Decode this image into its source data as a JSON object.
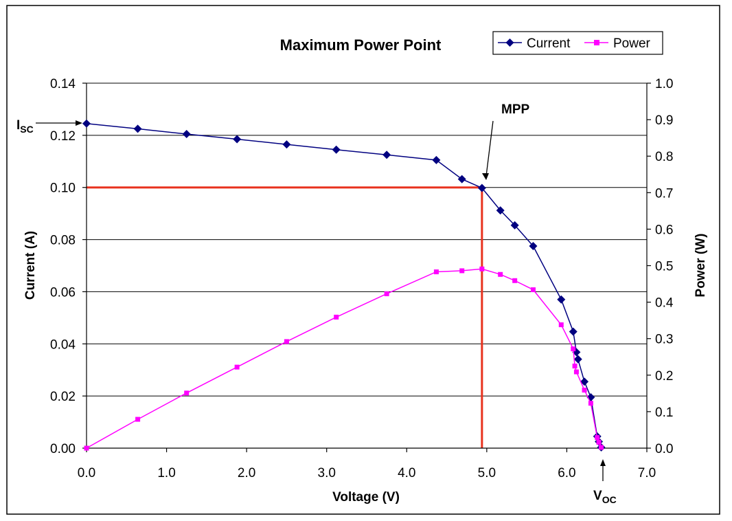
{
  "chart_data": {
    "type": "line",
    "title": "Maximum Power Point",
    "xlabel": "Voltage (V)",
    "ylabel": "Current (A)",
    "y2label": "Power (W)",
    "xlim": [
      0,
      7
    ],
    "ylim": [
      0,
      0.14
    ],
    "y2lim": [
      0,
      1.0
    ],
    "xticks": [
      "0.0",
      "1.0",
      "2.0",
      "3.0",
      "4.0",
      "5.0",
      "6.0",
      "7.0"
    ],
    "yticks": [
      "0.00",
      "0.02",
      "0.04",
      "0.06",
      "0.08",
      "0.10",
      "0.12",
      "0.14"
    ],
    "y2ticks": [
      "0.0",
      "0.1",
      "0.2",
      "0.3",
      "0.4",
      "0.5",
      "0.6",
      "0.7",
      "0.8",
      "0.9",
      "1.0"
    ],
    "grid": "horizontal",
    "legend_position": "top-right",
    "series": [
      {
        "name": "Current",
        "axis": "left",
        "color": "#000080",
        "marker": "diamond",
        "x": [
          0.0,
          0.64,
          1.25,
          1.88,
          2.5,
          3.12,
          3.75,
          4.37,
          4.69,
          4.94,
          5.17,
          5.35,
          5.58,
          5.93,
          6.08,
          6.12,
          6.14,
          6.22,
          6.3,
          6.38,
          6.4,
          6.43
        ],
        "y": [
          0.1245,
          0.1225,
          0.1205,
          0.1185,
          0.1165,
          0.1145,
          0.1125,
          0.1105,
          0.1032,
          0.0998,
          0.0912,
          0.0855,
          0.0775,
          0.057,
          0.0447,
          0.0368,
          0.0341,
          0.0255,
          0.0195,
          0.0045,
          0.0025,
          0.0003
        ]
      },
      {
        "name": "Power",
        "axis": "right",
        "color": "#ff00ff",
        "marker": "square",
        "x": [
          0.0,
          0.64,
          1.25,
          1.88,
          2.5,
          3.12,
          3.75,
          4.37,
          4.69,
          4.94,
          5.17,
          5.35,
          5.58,
          5.93,
          6.08,
          6.1,
          6.12,
          6.22,
          6.3,
          6.38,
          6.4,
          6.43
        ],
        "y": [
          0.0,
          0.079,
          0.151,
          0.222,
          0.292,
          0.359,
          0.423,
          0.483,
          0.486,
          0.491,
          0.476,
          0.459,
          0.434,
          0.338,
          0.272,
          0.225,
          0.209,
          0.159,
          0.123,
          0.029,
          0.016,
          0.002
        ]
      }
    ],
    "mpp_guide": {
      "voltage": 4.94,
      "current": 0.1,
      "color": "#e8321e"
    },
    "annotations": {
      "mpp_label": "MPP",
      "isc_main": "I",
      "isc_sub": "SC",
      "voc_main": "V",
      "voc_sub": "OC"
    }
  }
}
